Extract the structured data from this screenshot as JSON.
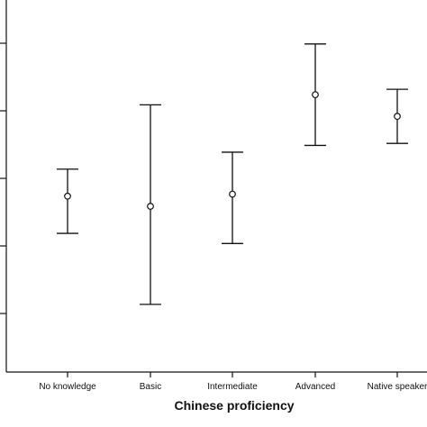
{
  "chart_data": {
    "type": "scatter",
    "subtype": "error-bar",
    "title": "",
    "xlabel": "Chinese proficiency",
    "ylabel": "",
    "categories": [
      "No knowledge",
      "Basic",
      "Intermediate",
      "Advanced",
      "Native speaker"
    ],
    "y_ticks_labeled": false,
    "ylim": [
      0,
      5.5
    ],
    "grid": false,
    "legend": "none",
    "points": [
      {
        "category": "No knowledge",
        "mean": 2.6,
        "lower": 2.05,
        "upper": 3.0
      },
      {
        "category": "Basic",
        "mean": 2.45,
        "lower": 1.0,
        "upper": 3.95
      },
      {
        "category": "Intermediate",
        "mean": 2.63,
        "lower": 1.9,
        "upper": 3.25
      },
      {
        "category": "Advanced",
        "mean": 4.1,
        "lower": 3.35,
        "upper": 4.85
      },
      {
        "category": "Native speaker",
        "mean": 3.78,
        "lower": 3.38,
        "upper": 4.18
      }
    ],
    "colors": {
      "axis": "#111111",
      "marker": "#111111"
    }
  }
}
